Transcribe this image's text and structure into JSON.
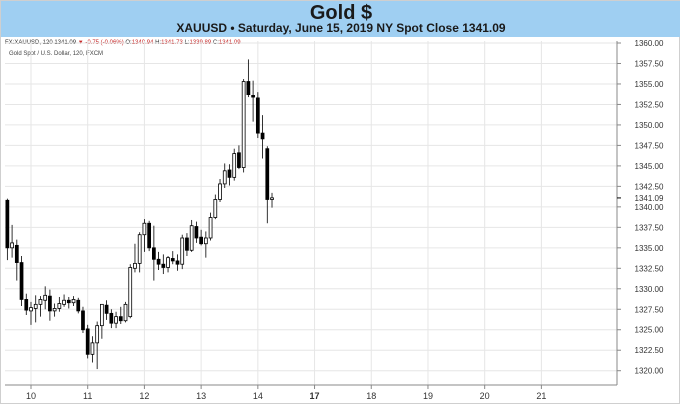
{
  "header": {
    "title": "Gold $",
    "subtitle": "XAUUSD • Saturday, June 15, 2019 NY Spot Close 1341.09"
  },
  "ohlc_bar": {
    "symbol": "FX:XAUUSD, 120",
    "last": "1341.09",
    "change": "▼ -0.75 (-0.06%)",
    "o_label": "O:",
    "o_value": "1340.94",
    "h_label": "H:",
    "h_value": "1341.73",
    "l_label": "L:",
    "l_value": "1339.89",
    "c_label": "C:",
    "c_value": "1341.09"
  },
  "series_label": "Gold Spot / U.S. Dollar, 120, FXCM",
  "colors": {
    "banner": "#9fcff2",
    "up_body": "#ffffff",
    "down_body": "#000000",
    "wick": "#000000",
    "grid": "#e6e6e6",
    "price_marker": "#000000"
  },
  "chart_data": {
    "type": "candlestick",
    "interval": "120 minutes",
    "ylim": [
      1318.5,
      1360
    ],
    "y_ticks": [
      "1320.00",
      "1322.50",
      "1325.00",
      "1327.50",
      "1330.00",
      "1332.50",
      "1335.00",
      "1337.50",
      "1340.00",
      "1342.50",
      "1345.00",
      "1347.50",
      "1350.00",
      "1352.50",
      "1355.00",
      "1357.50",
      "1360.00"
    ],
    "last_price": "1341.09",
    "x_ticks": [
      {
        "label": "10",
        "bar": 5,
        "bold": false
      },
      {
        "label": "11",
        "bar": 17,
        "bold": false
      },
      {
        "label": "12",
        "bar": 29,
        "bold": false
      },
      {
        "label": "13",
        "bar": 41,
        "bold": false
      },
      {
        "label": "14",
        "bar": 53,
        "bold": false
      },
      {
        "label": "17",
        "bar": 65,
        "bold": true
      },
      {
        "label": "18",
        "bar": 77,
        "bold": false
      },
      {
        "label": "19",
        "bar": 89,
        "bold": false
      },
      {
        "label": "20",
        "bar": 101,
        "bold": false
      },
      {
        "label": "21",
        "bar": 113,
        "bold": false
      }
    ],
    "x_range": [
      -0.5,
      129
    ],
    "candles": [
      {
        "o": 1340.8,
        "h": 1341.0,
        "l": 1333.5,
        "c": 1335.0
      },
      {
        "o": 1335.0,
        "h": 1337.8,
        "l": 1333.8,
        "c": 1335.6
      },
      {
        "o": 1335.3,
        "h": 1336.0,
        "l": 1331.0,
        "c": 1333.2
      },
      {
        "o": 1333.2,
        "h": 1334.0,
        "l": 1327.9,
        "c": 1328.7
      },
      {
        "o": 1328.7,
        "h": 1329.4,
        "l": 1326.8,
        "c": 1327.4
      },
      {
        "o": 1327.3,
        "h": 1328.4,
        "l": 1325.6,
        "c": 1327.7
      },
      {
        "o": 1327.6,
        "h": 1329.2,
        "l": 1325.9,
        "c": 1328.1
      },
      {
        "o": 1328.1,
        "h": 1329.1,
        "l": 1326.6,
        "c": 1328.7
      },
      {
        "o": 1328.6,
        "h": 1330.3,
        "l": 1327.5,
        "c": 1329.2
      },
      {
        "o": 1329.1,
        "h": 1329.9,
        "l": 1326.1,
        "c": 1327.3
      },
      {
        "o": 1327.3,
        "h": 1328.2,
        "l": 1326.6,
        "c": 1327.6
      },
      {
        "o": 1327.6,
        "h": 1329.0,
        "l": 1327.2,
        "c": 1328.2
      },
      {
        "o": 1328.1,
        "h": 1329.3,
        "l": 1327.8,
        "c": 1328.6
      },
      {
        "o": 1328.6,
        "h": 1329.0,
        "l": 1327.6,
        "c": 1328.3
      },
      {
        "o": 1328.3,
        "h": 1329.1,
        "l": 1327.9,
        "c": 1328.7
      },
      {
        "o": 1328.6,
        "h": 1328.9,
        "l": 1327.0,
        "c": 1327.3
      },
      {
        "o": 1327.3,
        "h": 1327.8,
        "l": 1324.6,
        "c": 1325.0
      },
      {
        "o": 1325.1,
        "h": 1325.6,
        "l": 1321.5,
        "c": 1322.0
      },
      {
        "o": 1322.0,
        "h": 1324.2,
        "l": 1321.0,
        "c": 1323.4
      },
      {
        "o": 1323.4,
        "h": 1326.0,
        "l": 1320.2,
        "c": 1325.5
      },
      {
        "o": 1325.5,
        "h": 1328.0,
        "l": 1323.9,
        "c": 1328.1
      },
      {
        "o": 1328.0,
        "h": 1328.6,
        "l": 1326.2,
        "c": 1327.0
      },
      {
        "o": 1327.0,
        "h": 1327.5,
        "l": 1325.2,
        "c": 1325.8
      },
      {
        "o": 1325.8,
        "h": 1327.2,
        "l": 1325.2,
        "c": 1326.6
      },
      {
        "o": 1326.6,
        "h": 1327.8,
        "l": 1325.7,
        "c": 1326.1
      },
      {
        "o": 1326.1,
        "h": 1328.4,
        "l": 1325.9,
        "c": 1328.1
      },
      {
        "o": 1326.6,
        "h": 1333.0,
        "l": 1326.4,
        "c": 1332.6
      },
      {
        "o": 1332.5,
        "h": 1335.5,
        "l": 1332.0,
        "c": 1333.1
      },
      {
        "o": 1333.1,
        "h": 1336.9,
        "l": 1332.0,
        "c": 1336.6
      },
      {
        "o": 1336.6,
        "h": 1338.5,
        "l": 1334.5,
        "c": 1338.0
      },
      {
        "o": 1338.0,
        "h": 1338.3,
        "l": 1334.6,
        "c": 1335.0
      },
      {
        "o": 1335.0,
        "h": 1337.7,
        "l": 1331.0,
        "c": 1333.6
      },
      {
        "o": 1333.6,
        "h": 1334.5,
        "l": 1332.3,
        "c": 1333.0
      },
      {
        "o": 1333.0,
        "h": 1334.2,
        "l": 1331.8,
        "c": 1332.6
      },
      {
        "o": 1332.6,
        "h": 1334.0,
        "l": 1332.0,
        "c": 1333.8
      },
      {
        "o": 1333.7,
        "h": 1334.6,
        "l": 1333.0,
        "c": 1333.4
      },
      {
        "o": 1333.4,
        "h": 1334.2,
        "l": 1332.2,
        "c": 1333.0
      },
      {
        "o": 1333.0,
        "h": 1336.6,
        "l": 1332.4,
        "c": 1336.2
      },
      {
        "o": 1336.2,
        "h": 1336.8,
        "l": 1334.0,
        "c": 1334.7
      },
      {
        "o": 1334.7,
        "h": 1338.4,
        "l": 1334.5,
        "c": 1337.7
      },
      {
        "o": 1337.6,
        "h": 1338.2,
        "l": 1335.6,
        "c": 1336.2
      },
      {
        "o": 1336.3,
        "h": 1337.2,
        "l": 1335.3,
        "c": 1335.5
      },
      {
        "o": 1335.5,
        "h": 1337.0,
        "l": 1333.8,
        "c": 1336.2
      },
      {
        "o": 1336.2,
        "h": 1339.3,
        "l": 1335.9,
        "c": 1338.7
      },
      {
        "o": 1338.7,
        "h": 1341.5,
        "l": 1338.5,
        "c": 1340.9
      },
      {
        "o": 1340.9,
        "h": 1343.4,
        "l": 1340.6,
        "c": 1342.8
      },
      {
        "o": 1342.8,
        "h": 1345.3,
        "l": 1342.3,
        "c": 1344.4
      },
      {
        "o": 1344.5,
        "h": 1345.2,
        "l": 1342.6,
        "c": 1343.6
      },
      {
        "o": 1343.6,
        "h": 1347.1,
        "l": 1343.2,
        "c": 1346.5
      },
      {
        "o": 1346.6,
        "h": 1347.5,
        "l": 1344.6,
        "c": 1344.8
      },
      {
        "o": 1344.8,
        "h": 1355.6,
        "l": 1344.2,
        "c": 1355.3
      },
      {
        "o": 1355.3,
        "h": 1358.0,
        "l": 1353.4,
        "c": 1353.7
      },
      {
        "o": 1353.6,
        "h": 1355.4,
        "l": 1350.4,
        "c": 1353.4
      },
      {
        "o": 1353.3,
        "h": 1354.0,
        "l": 1348.4,
        "c": 1349.0
      },
      {
        "o": 1349.0,
        "h": 1351.2,
        "l": 1345.9,
        "c": 1348.3
      },
      {
        "o": 1347.1,
        "h": 1347.4,
        "l": 1338.0,
        "c": 1340.9
      },
      {
        "o": 1340.9,
        "h": 1341.7,
        "l": 1339.9,
        "c": 1341.1
      }
    ]
  }
}
